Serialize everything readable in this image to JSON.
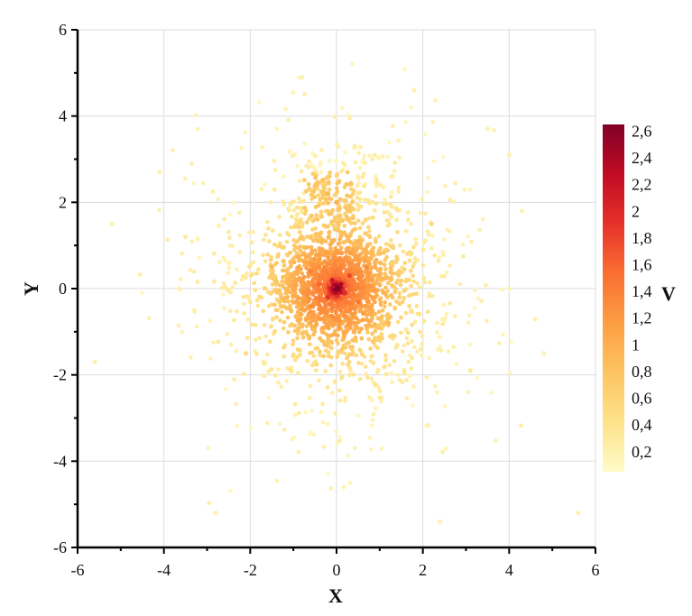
{
  "chart_data": {
    "type": "scatter",
    "title": "",
    "xlabel": "X",
    "ylabel": "Y",
    "xlim": [
      -6,
      6
    ],
    "ylim": [
      -6,
      6
    ],
    "x_ticks": [
      "-6",
      "-4",
      "-2",
      "0",
      "2",
      "4",
      "6"
    ],
    "y_ticks": [
      "-6",
      "-4",
      "-2",
      "0",
      "2",
      "4",
      "6"
    ],
    "grid": true,
    "colorbar": {
      "label": "V",
      "range": [
        0.05,
        2.65
      ],
      "ticks": [
        "0,2",
        "0,4",
        "0,6",
        "0,8",
        "1",
        "1,2",
        "1,4",
        "1,6",
        "1,8",
        "2",
        "2,2",
        "2,4",
        "2,6"
      ],
      "colors": [
        "#fffbc8",
        "#fee28a",
        "#fdc461",
        "#fd9e43",
        "#fa6f33",
        "#e6312a",
        "#c10c25",
        "#800026"
      ]
    },
    "points": [
      {
        "x": 0.0,
        "y": 0.0,
        "v": 2.6
      },
      {
        "x": 0.1,
        "y": 0.1,
        "v": 2.4
      },
      {
        "x": -0.1,
        "y": 0.2,
        "v": 2.2
      },
      {
        "x": 0.2,
        "y": -0.1,
        "v": 2.0
      },
      {
        "x": -0.2,
        "y": -0.2,
        "v": 1.9
      },
      {
        "x": 0.3,
        "y": 0.3,
        "v": 1.8
      },
      {
        "x": -0.4,
        "y": 0.1,
        "v": 1.6
      },
      {
        "x": 0.5,
        "y": -0.3,
        "v": 1.5
      },
      {
        "x": -0.6,
        "y": 0.4,
        "v": 1.4
      },
      {
        "x": 0.7,
        "y": 0.5,
        "v": 1.3
      },
      {
        "x": -0.2,
        "y": 2.2,
        "v": 0.9
      },
      {
        "x": 0.0,
        "y": 2.0,
        "v": 1.0
      },
      {
        "x": -1.5,
        "y": 0.5,
        "v": 0.9
      },
      {
        "x": 1.2,
        "y": -0.8,
        "v": 0.9
      },
      {
        "x": -2.1,
        "y": -1.5,
        "v": 0.5
      },
      {
        "x": 2.2,
        "y": 1.5,
        "v": 0.5
      },
      {
        "x": -3.5,
        "y": 1.2,
        "v": 0.3
      },
      {
        "x": 3.1,
        "y": -1.9,
        "v": 0.3
      },
      {
        "x": -5.6,
        "y": -1.7,
        "v": 0.2
      },
      {
        "x": -5.2,
        "y": 1.5,
        "v": 0.2
      },
      {
        "x": 5.6,
        "y": -5.2,
        "v": 0.2
      },
      {
        "x": 2.4,
        "y": -5.4,
        "v": 0.2
      },
      {
        "x": -2.8,
        "y": -5.2,
        "v": 0.2
      },
      {
        "x": -0.8,
        "y": 4.9,
        "v": 0.2
      },
      {
        "x": 1.8,
        "y": 4.6,
        "v": 0.2
      },
      {
        "x": 4.3,
        "y": 1.8,
        "v": 0.2
      },
      {
        "x": 4.0,
        "y": 3.1,
        "v": 0.2
      },
      {
        "x": 3.5,
        "y": 3.7,
        "v": 0.2
      },
      {
        "x": -4.1,
        "y": 2.7,
        "v": 0.2
      },
      {
        "x": 4.8,
        "y": -1.5,
        "v": 0.2
      }
    ]
  }
}
